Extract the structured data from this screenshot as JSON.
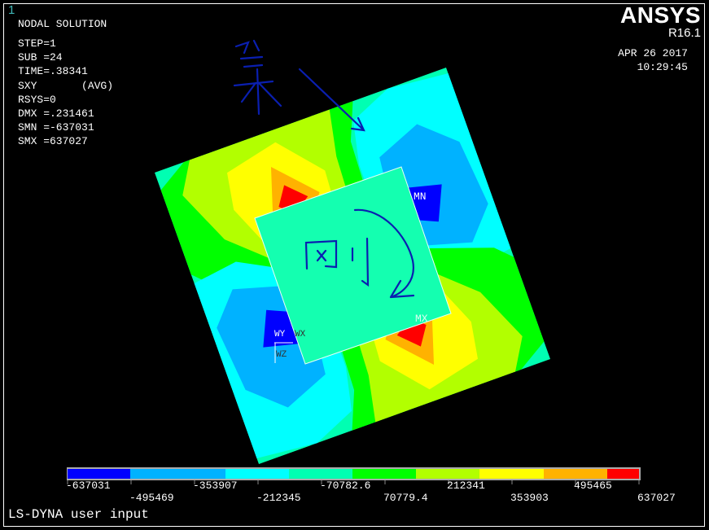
{
  "window_number": "1",
  "brand": "ANSYS",
  "release": "R16.1",
  "date": "APR 26 2017",
  "time": "10:29:45",
  "info": {
    "title": "NODAL SOLUTION",
    "lines": [
      "STEP=1",
      "SUB =24",
      "TIME=.38341",
      "SXY       (AVG)",
      "RSYS=0",
      "DMX =.231461",
      "SMN =-637031",
      "SMX =637027"
    ]
  },
  "model_labels": {
    "min": "MN",
    "max": "MX",
    "axis_y": "WY",
    "axis_x": "WX",
    "axis_z": "WZ"
  },
  "annotations": [
    "柔",
    "刚"
  ],
  "legend": {
    "colors": [
      "#0000ff",
      "#00b2ff",
      "#00ffff",
      "#00ffb2",
      "#00ff00",
      "#b2ff00",
      "#ffff00",
      "#ffb200",
      "#ff0000"
    ],
    "labels": [
      "-637031",
      "-495469",
      "-353907",
      "-212345",
      "-70782.6",
      "70779.4",
      "212341",
      "353903",
      "495465",
      "637027"
    ]
  },
  "status": "LS-DYNA user input"
}
